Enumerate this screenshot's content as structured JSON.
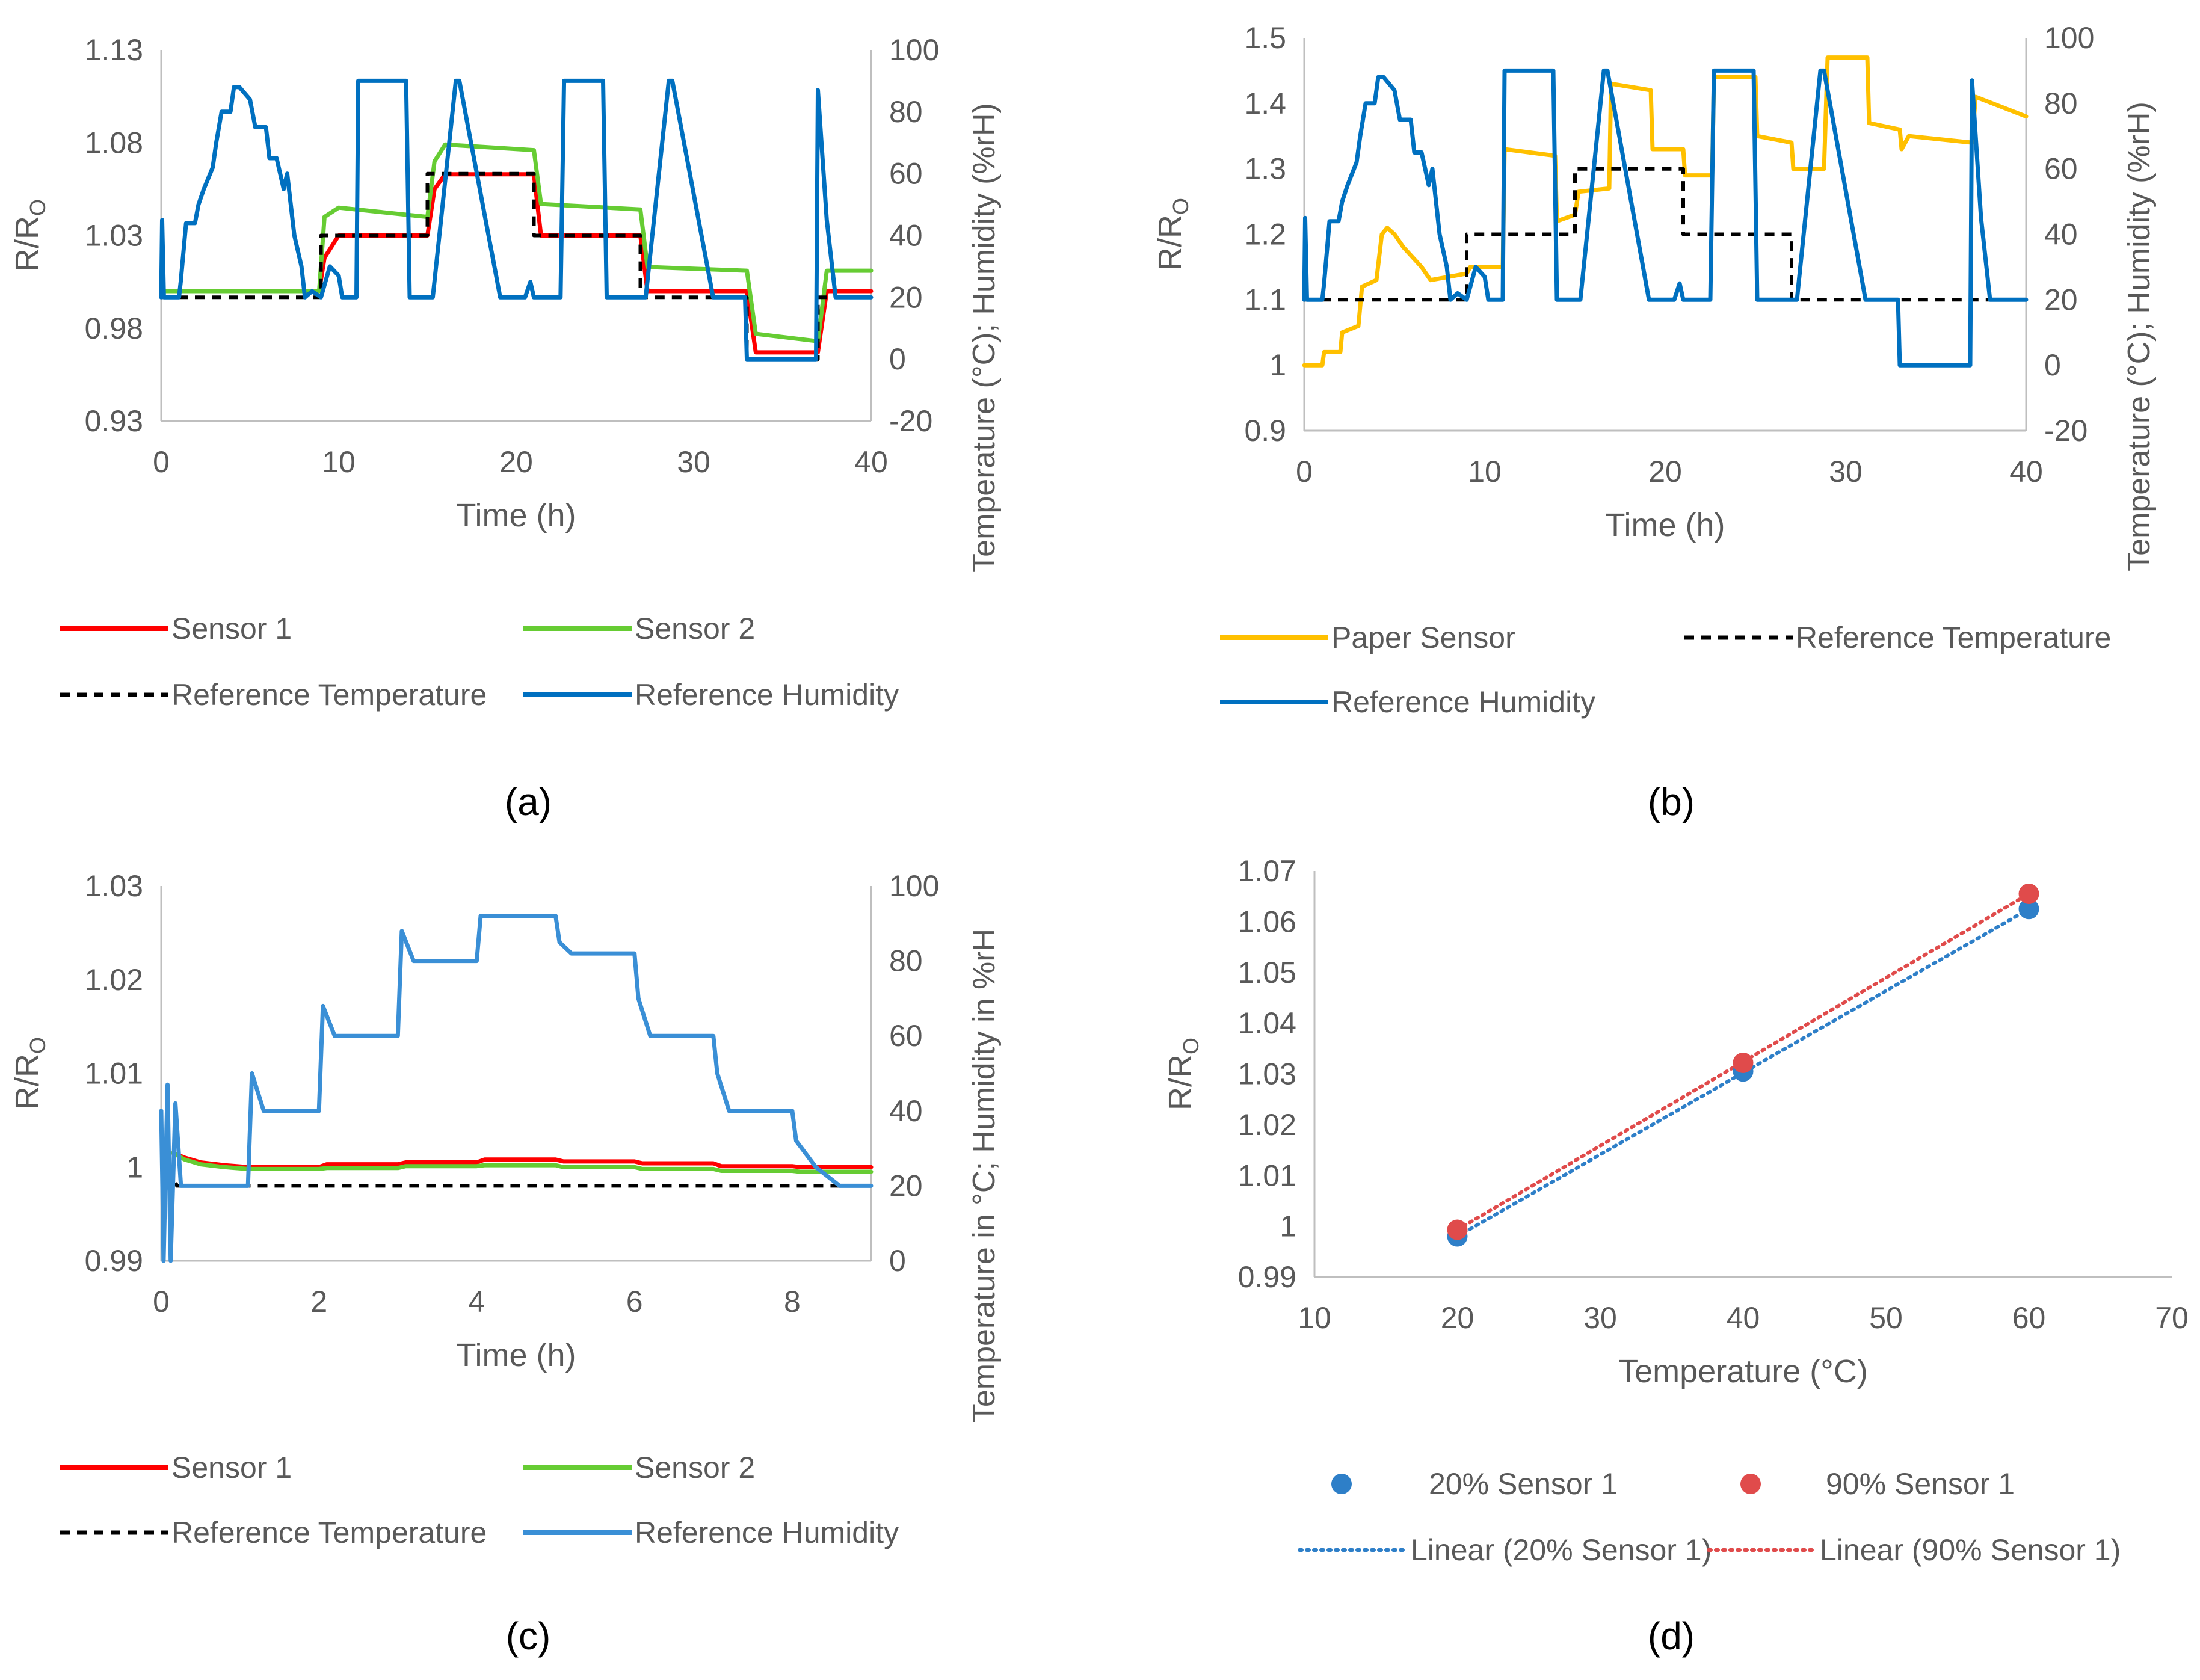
{
  "figure": {
    "panels": [
      "a",
      "b",
      "c",
      "d"
    ]
  },
  "colors": {
    "sensor1": "#ff0000",
    "sensor2": "#66cc33",
    "paper_sensor": "#ffc000",
    "ref_temperature": "#000000",
    "ref_humidity": "#0070c0",
    "ref_humidity_c": "#3a8fd6",
    "series_20": "#2e7fc8",
    "series_90": "#e04b4b",
    "axis": "#bfbfbf",
    "text": "#595959"
  },
  "chart_data": [
    {
      "id": "a",
      "type": "line",
      "caption": "(a)",
      "xlabel": "Time (h)",
      "ylabel_left": "R/R",
      "ylabel_left_sub": "O",
      "ylabel_right": "Temperature (°C); Humidity (%rH)",
      "xlim": [
        0,
        40
      ],
      "xticks": [
        0,
        10,
        20,
        30,
        40
      ],
      "xtick_labels": [
        "0",
        "10",
        "20",
        "30",
        "40"
      ],
      "ylim_left": [
        0.93,
        1.13
      ],
      "yticks_left": [
        0.93,
        0.98,
        1.03,
        1.08,
        1.13
      ],
      "ytick_labels_left": [
        "0.93",
        "0.98",
        "1.03",
        "1.08",
        "1.13"
      ],
      "ylim_right": [
        -20,
        100
      ],
      "yticks_right": [
        -20,
        0,
        20,
        40,
        60,
        80,
        100
      ],
      "ytick_labels_right": [
        "-20",
        "0",
        "20",
        "40",
        "60",
        "80",
        "100"
      ],
      "legend": [
        "Sensor 1",
        "Sensor 2",
        "Reference Temperature",
        "Reference Humidity"
      ],
      "series": [
        {
          "name": "Sensor 1",
          "axis": "left",
          "color": "sensor1",
          "x": [
            0,
            8.9,
            9.2,
            10,
            15,
            15.4,
            16,
            21,
            21.4,
            27,
            27.4,
            33,
            33.5,
            37,
            37.5,
            40
          ],
          "y": [
            1.0,
            1.0,
            1.018,
            1.03,
            1.03,
            1.055,
            1.063,
            1.063,
            1.03,
            1.03,
            1.0,
            1.0,
            0.967,
            0.967,
            1.0,
            1.0
          ]
        },
        {
          "name": "Sensor 2",
          "axis": "left",
          "color": "sensor2",
          "x": [
            0,
            8.9,
            9.2,
            10,
            15,
            15.4,
            16,
            21,
            21.4,
            27,
            27.4,
            33,
            33.5,
            37,
            37.5,
            40
          ],
          "y": [
            1.0,
            1.0,
            1.04,
            1.045,
            1.04,
            1.07,
            1.079,
            1.076,
            1.047,
            1.044,
            1.013,
            1.011,
            0.977,
            0.973,
            1.011,
            1.011
          ]
        },
        {
          "name": "Reference Temperature",
          "axis": "right",
          "color": "ref_temperature",
          "dash": true,
          "x": [
            0,
            9,
            9,
            15,
            15,
            21,
            21,
            27,
            27,
            33,
            33,
            37,
            37,
            40
          ],
          "y": [
            20,
            20,
            40,
            40,
            60,
            60,
            40,
            40,
            20,
            20,
            0,
            0,
            20,
            20
          ]
        },
        {
          "name": "Reference Humidity",
          "axis": "right",
          "color": "ref_humidity",
          "x": [
            0,
            0.05,
            0.15,
            1.0,
            1.1,
            1.4,
            1.9,
            2.1,
            2.4,
            2.9,
            3.1,
            3.4,
            3.9,
            4.1,
            4.4,
            5.0,
            5.3,
            5.9,
            6.1,
            6.5,
            6.9,
            7.1,
            7.5,
            7.9,
            8.1,
            8.5,
            9.0,
            9.5,
            10.0,
            10.2,
            11.0,
            11.1,
            13.8,
            14.0,
            14.6,
            15.0,
            15.3,
            16.6,
            16.8,
            19.1,
            19.3,
            20.5,
            20.8,
            21.0,
            22.5,
            22.7,
            24.9,
            25.1,
            26.4,
            27.0,
            27.3,
            28.6,
            28.8,
            31.1,
            31.3,
            32.9,
            33.0,
            36.9,
            37.0,
            37.5,
            38.0,
            40
          ],
          "y": [
            20,
            45,
            20,
            20,
            25,
            44,
            44,
            50,
            55,
            62,
            70,
            80,
            80,
            88,
            88,
            84,
            75,
            75,
            65,
            65,
            55,
            60,
            40,
            30,
            20,
            22,
            20,
            30,
            27,
            20,
            20,
            90,
            90,
            20,
            20,
            20,
            20,
            90,
            90,
            20,
            20,
            20,
            25,
            20,
            20,
            90,
            90,
            20,
            20,
            20,
            20,
            90,
            90,
            20,
            20,
            20,
            0,
            0,
            87,
            45,
            20,
            20
          ]
        }
      ]
    },
    {
      "id": "b",
      "type": "line",
      "caption": "(b)",
      "xlabel": "Time (h)",
      "ylabel_left": "R/R",
      "ylabel_left_sub": "O",
      "ylabel_right": "Temperature (°C); Humidity (%rH)",
      "xlim": [
        0,
        40
      ],
      "xticks": [
        0,
        10,
        20,
        30,
        40
      ],
      "xtick_labels": [
        "0",
        "10",
        "20",
        "30",
        "40"
      ],
      "ylim_left": [
        0.9,
        1.5
      ],
      "yticks_left": [
        0.9,
        1.0,
        1.1,
        1.2,
        1.3,
        1.4,
        1.5
      ],
      "ytick_labels_left": [
        "0.9",
        "1",
        "1.1",
        "1.2",
        "1.3",
        "1.4",
        "1.5"
      ],
      "ylim_right": [
        -20,
        100
      ],
      "yticks_right": [
        -20,
        0,
        20,
        40,
        60,
        80,
        100
      ],
      "ytick_labels_right": [
        "-20",
        "0",
        "20",
        "40",
        "60",
        "80",
        "100"
      ],
      "legend": [
        "Paper Sensor",
        "Reference Temperature",
        "Reference Humidity"
      ],
      "series": [
        {
          "name": "Paper Sensor",
          "axis": "left",
          "color": "paper_sensor",
          "x": [
            0,
            1,
            1.1,
            2,
            2.1,
            3,
            3.2,
            4,
            4.3,
            4.6,
            5.0,
            5.5,
            6.5,
            7,
            9,
            9.2,
            11,
            11.1,
            13.9,
            14,
            15,
            15.2,
            16.9,
            17,
            19.2,
            19.3,
            21,
            21.1,
            22.6,
            22.7,
            25,
            25.1,
            27,
            27.1,
            28.8,
            29,
            31.2,
            31.3,
            33,
            33.1,
            33.5,
            37,
            37.2,
            40
          ],
          "y": [
            1.0,
            1.0,
            1.02,
            1.02,
            1.05,
            1.06,
            1.12,
            1.13,
            1.2,
            1.21,
            1.2,
            1.18,
            1.15,
            1.13,
            1.14,
            1.15,
            1.15,
            1.33,
            1.32,
            1.22,
            1.23,
            1.265,
            1.27,
            1.43,
            1.42,
            1.33,
            1.33,
            1.29,
            1.29,
            1.44,
            1.44,
            1.35,
            1.34,
            1.3,
            1.3,
            1.47,
            1.47,
            1.37,
            1.36,
            1.33,
            1.35,
            1.34,
            1.41,
            1.38
          ]
        },
        {
          "name": "Reference Temperature",
          "axis": "right",
          "color": "ref_temperature",
          "dash": true,
          "x": [
            0,
            9,
            9,
            15,
            15,
            21,
            21,
            27,
            27,
            33,
            33,
            37,
            37,
            40
          ],
          "y": [
            20,
            20,
            40,
            40,
            60,
            60,
            40,
            40,
            20,
            20,
            20,
            20,
            20,
            20
          ]
        },
        {
          "name": "Reference Humidity",
          "axis": "right",
          "color": "ref_humidity",
          "x": [
            0,
            0.05,
            0.15,
            1.0,
            1.1,
            1.4,
            1.9,
            2.1,
            2.4,
            2.9,
            3.1,
            3.4,
            3.9,
            4.1,
            4.4,
            5.0,
            5.3,
            5.9,
            6.1,
            6.5,
            6.9,
            7.1,
            7.5,
            7.9,
            8.1,
            8.5,
            9.0,
            9.5,
            10.0,
            10.2,
            11.0,
            11.1,
            13.8,
            14.0,
            14.6,
            15.0,
            15.3,
            16.6,
            16.8,
            19.1,
            19.3,
            20.5,
            20.8,
            21.0,
            22.5,
            22.7,
            24.9,
            25.1,
            26.4,
            27.0,
            27.3,
            28.6,
            28.8,
            31.1,
            31.3,
            32.9,
            33.0,
            36.9,
            37.0,
            37.5,
            38.0,
            40
          ],
          "y": [
            20,
            45,
            20,
            20,
            25,
            44,
            44,
            50,
            55,
            62,
            70,
            80,
            80,
            88,
            88,
            84,
            75,
            75,
            65,
            65,
            55,
            60,
            40,
            30,
            20,
            22,
            20,
            30,
            27,
            20,
            20,
            90,
            90,
            20,
            20,
            20,
            20,
            90,
            90,
            20,
            20,
            20,
            25,
            20,
            20,
            90,
            90,
            20,
            20,
            20,
            20,
            90,
            90,
            20,
            20,
            20,
            0,
            0,
            87,
            45,
            20,
            20
          ]
        }
      ]
    },
    {
      "id": "c",
      "type": "line",
      "caption": "(c)",
      "xlabel": "Time (h)",
      "ylabel_left": "R/R",
      "ylabel_left_sub": "O",
      "ylabel_right": "Temperature in °C; Humidity in %rH",
      "xlim": [
        0,
        9
      ],
      "xticks": [
        0,
        2,
        4,
        6,
        8
      ],
      "xtick_labels": [
        "0",
        "2",
        "4",
        "6",
        "8"
      ],
      "ylim_left": [
        0.99,
        1.03
      ],
      "yticks_left": [
        0.99,
        1.0,
        1.01,
        1.02,
        1.03
      ],
      "ytick_labels_left": [
        "0.99",
        "1",
        "1.01",
        "1.02",
        "1.03"
      ],
      "ylim_right": [
        0,
        100
      ],
      "yticks_right": [
        0,
        20,
        40,
        60,
        80,
        100
      ],
      "ytick_labels_right": [
        "0",
        "20",
        "40",
        "60",
        "80",
        "100"
      ],
      "legend": [
        "Sensor 1",
        "Sensor 2",
        "Reference Temperature",
        "Reference Humidity"
      ],
      "series": [
        {
          "name": "Sensor 1",
          "axis": "left",
          "color": "sensor1",
          "x": [
            0.15,
            0.3,
            0.5,
            0.8,
            1.1,
            2,
            2.1,
            3,
            3.1,
            4,
            4.1,
            5,
            5.1,
            6,
            6.1,
            7,
            7.1,
            8,
            8.1,
            9
          ],
          "y": [
            1.0015,
            1.001,
            1.0005,
            1.0002,
            1.0,
            1.0,
            1.0003,
            1.0003,
            1.0005,
            1.0005,
            1.0008,
            1.0008,
            1.0006,
            1.0006,
            1.0004,
            1.0004,
            1.0001,
            1.0001,
            1.0,
            1.0
          ]
        },
        {
          "name": "Sensor 2",
          "axis": "left",
          "color": "sensor2",
          "x": [
            0.15,
            0.3,
            0.5,
            0.8,
            1.1,
            2,
            2.1,
            3,
            3.1,
            4,
            4.1,
            5,
            5.1,
            6,
            6.1,
            7,
            7.1,
            8,
            8.1,
            9
          ],
          "y": [
            1.0015,
            1.0008,
            1.0003,
            1.0,
            0.9998,
            0.9998,
            0.9999,
            0.9999,
            1.0001,
            1.0001,
            1.0002,
            1.0002,
            1.0,
            1.0,
            0.9998,
            0.9998,
            0.9996,
            0.9996,
            0.9995,
            0.9995
          ]
        },
        {
          "name": "Reference Temperature",
          "axis": "right",
          "color": "ref_temperature",
          "dash": true,
          "x": [
            0.1,
            0.2,
            1.1,
            2.0,
            4.0,
            5.0,
            6.0,
            7.0,
            8.0,
            9.0
          ],
          "y": [
            25,
            20,
            20,
            20,
            20,
            20,
            20,
            20,
            20,
            20
          ]
        },
        {
          "name": "Reference Humidity",
          "axis": "right",
          "color": "ref_humidity_c",
          "x": [
            0,
            0.03,
            0.08,
            0.12,
            0.18,
            0.25,
            1.1,
            1.15,
            1.3,
            2.0,
            2.05,
            2.2,
            3.0,
            3.05,
            3.2,
            4.0,
            4.05,
            4.2,
            5.0,
            5.05,
            5.2,
            6.0,
            6.05,
            6.2,
            7.0,
            7.05,
            7.2,
            8.0,
            8.05,
            8.3,
            8.6,
            9.0
          ],
          "y": [
            40,
            0,
            47,
            0,
            42,
            20,
            20,
            50,
            40,
            40,
            68,
            60,
            60,
            88,
            80,
            80,
            92,
            92,
            92,
            85,
            82,
            82,
            70,
            60,
            60,
            50,
            40,
            40,
            32,
            25,
            20,
            20
          ]
        }
      ]
    },
    {
      "id": "d",
      "type": "scatter",
      "caption": "(d)",
      "xlabel": "Temperature (°C)",
      "ylabel_left": "R/R",
      "ylabel_left_sub": "O",
      "xlim": [
        10,
        70
      ],
      "xticks": [
        10,
        20,
        30,
        40,
        50,
        60,
        70
      ],
      "xtick_labels": [
        "10",
        "20",
        "30",
        "40",
        "50",
        "60",
        "70"
      ],
      "ylim_left": [
        0.99,
        1.07
      ],
      "yticks_left": [
        0.99,
        1.0,
        1.01,
        1.02,
        1.03,
        1.04,
        1.05,
        1.06,
        1.07
      ],
      "ytick_labels_left": [
        "0.99",
        "1",
        "1.01",
        "1.02",
        "1.03",
        "1.04",
        "1.05",
        "1.06",
        "1.07"
      ],
      "legend": [
        "20% Sensor 1",
        "90% Sensor 1",
        "Linear (20% Sensor 1)",
        "Linear (90% Sensor 1)"
      ],
      "series": [
        {
          "name": "20% Sensor 1",
          "color": "series_20",
          "x": [
            20,
            40,
            60
          ],
          "y": [
            0.998,
            1.0305,
            1.0625
          ]
        },
        {
          "name": "90% Sensor 1",
          "color": "series_90",
          "x": [
            20,
            40,
            60
          ],
          "y": [
            0.9993,
            1.0322,
            1.0655
          ]
        }
      ],
      "trendlines": [
        {
          "name": "Linear (20% Sensor 1)",
          "color": "series_20",
          "x": [
            20,
            60
          ],
          "y": [
            0.998,
            1.0625
          ]
        },
        {
          "name": "Linear (90% Sensor 1)",
          "color": "series_90",
          "x": [
            20,
            60
          ],
          "y": [
            0.9993,
            1.0655
          ]
        }
      ]
    }
  ]
}
